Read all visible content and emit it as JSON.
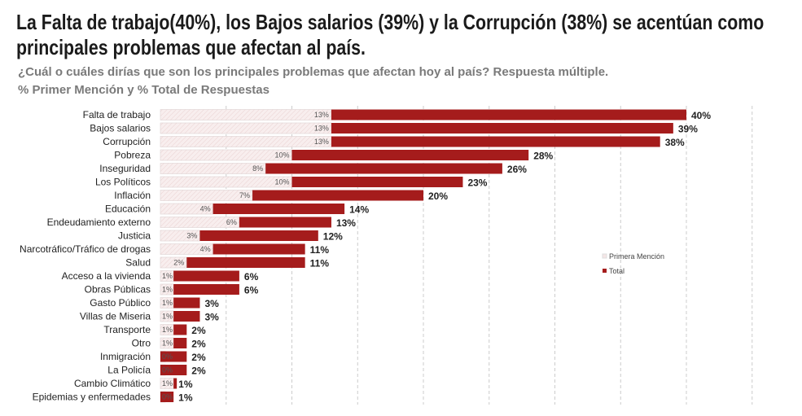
{
  "header": {
    "title": "La Falta de trabajo(40%), los Bajos salarios (39%) y la Corrupción (38%) se acentúan como principales problemas que afectan al país.",
    "subtitle": "¿Cuál o cuáles dirías que son los principales problemas que afectan hoy al país? Respuesta múltiple.",
    "subtitle2": "% Primer Mención y % Total de Respuestas"
  },
  "chart_data": {
    "type": "bar",
    "orientation": "horizontal",
    "categories": [
      "Falta de trabajo",
      "Bajos salarios",
      "Corrupción",
      "Pobreza",
      "Inseguridad",
      "Los Políticos",
      "Inflación",
      "Educación",
      "Endeudamiento externo",
      "Justicia",
      "Narcotráfico/Tráfico de drogas",
      "Salud",
      "Acceso a la vivienda",
      "Obras Públicas",
      "Gasto Público",
      "Villas de Miseria",
      "Transporte",
      "Otro",
      "Inmigración",
      "La Policía",
      "Cambio Climático",
      "Epidemias y enfermedades"
    ],
    "series": [
      {
        "name": "Primera Mención",
        "color": "#f5e6e6",
        "values": [
          13,
          13,
          13,
          10,
          8,
          10,
          7,
          4,
          6,
          3,
          4,
          2,
          1,
          1,
          1,
          1,
          1,
          1,
          0,
          0,
          1,
          0
        ]
      },
      {
        "name": "Total",
        "color": "#a51c1c",
        "values": [
          40,
          39,
          38,
          28,
          26,
          23,
          20,
          14,
          13,
          12,
          11,
          11,
          6,
          6,
          3,
          3,
          2,
          2,
          2,
          2,
          1,
          1
        ]
      }
    ],
    "xlim": [
      0,
      45
    ],
    "xticks": [
      "0%",
      "5%",
      "10%",
      "15%",
      "20%",
      "25%",
      "30%",
      "35%",
      "40%",
      "45%"
    ],
    "grid": true,
    "legend": "right"
  }
}
